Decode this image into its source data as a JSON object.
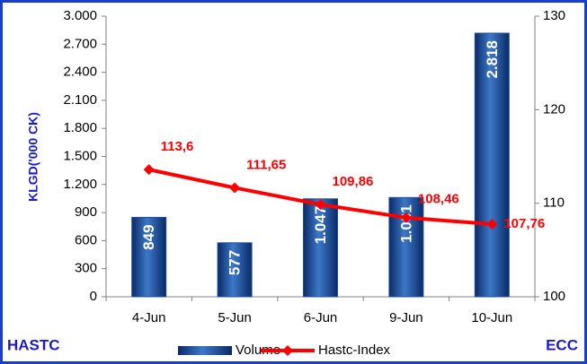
{
  "chart_data": {
    "type": "bar",
    "y_label": "KLGD('000 CK)",
    "corner_left": "HASTC",
    "corner_right": "ECC",
    "categories": [
      "4-Jun",
      "5-Jun",
      "6-Jun",
      "9-Jun",
      "10-Jun"
    ],
    "series": [
      {
        "name": "Volume",
        "type": "bar",
        "color": "#1f4e9c",
        "values": [
          849,
          577,
          1047,
          1061,
          2818
        ],
        "value_labels": [
          "849",
          "577",
          "1.047",
          "1.061",
          "2.818"
        ]
      },
      {
        "name": "Hastc-Index",
        "type": "line",
        "axis": "y2",
        "color": "#ff0000",
        "values": [
          113.6,
          111.65,
          109.86,
          108.46,
          107.76
        ],
        "value_labels": [
          "113,6",
          "111,65",
          "109,86",
          "108,46",
          "107,76"
        ]
      }
    ],
    "ylim": [
      0,
      3000
    ],
    "yticks": [
      0,
      300,
      600,
      900,
      {
        "value": 1200,
        "label": "1.200"
      },
      {
        "value": 1500,
        "label": "1.500"
      },
      {
        "value": 1800,
        "label": "1.800"
      },
      {
        "value": 2100,
        "label": "2.100"
      },
      {
        "value": 2400,
        "label": "2.400"
      },
      {
        "value": 2700,
        "label": "2.700"
      },
      {
        "value": 3000,
        "label": "3.000"
      }
    ],
    "y2lim": [
      100,
      130
    ],
    "y2ticks": [
      100,
      110,
      120,
      130
    ],
    "grid": false,
    "legend": "bottom"
  }
}
